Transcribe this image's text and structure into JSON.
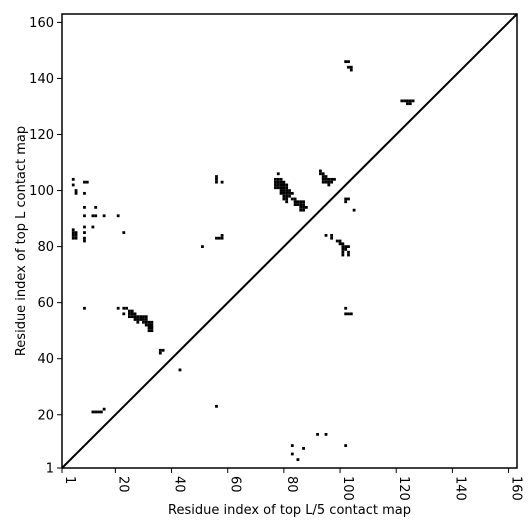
{
  "chart_data": {
    "type": "scatter",
    "title": "",
    "xlabel": "Residue index of top L/5 contact map",
    "ylabel": "Residue index of top L contact map",
    "xlim": [
      1,
      163
    ],
    "ylim": [
      1,
      163
    ],
    "x_ticks": [
      1,
      20,
      40,
      60,
      80,
      100,
      120,
      140,
      160
    ],
    "y_ticks": [
      1,
      20,
      40,
      60,
      80,
      100,
      120,
      140,
      160
    ],
    "x_tick_rotation": -90,
    "grid": false,
    "legend": "none",
    "diagonal": [
      [
        1,
        1
      ],
      [
        163,
        163
      ]
    ],
    "marker": "square",
    "marker_color": "#000000",
    "series": [
      {
        "points": [
          [
            5,
            104
          ],
          [
            5,
            102
          ],
          [
            6,
            100
          ],
          [
            6,
            99
          ],
          [
            9,
            103
          ],
          [
            10,
            103
          ],
          [
            9,
            99
          ],
          [
            9,
            94
          ],
          [
            9,
            91
          ],
          [
            12,
            91
          ],
          [
            13,
            91
          ],
          [
            13,
            94
          ],
          [
            16,
            91
          ],
          [
            21,
            91
          ],
          [
            5,
            86
          ],
          [
            5,
            85
          ],
          [
            6,
            85
          ],
          [
            5,
            84
          ],
          [
            6,
            84
          ],
          [
            5,
            83
          ],
          [
            6,
            83
          ],
          [
            9,
            87
          ],
          [
            9,
            85
          ],
          [
            9,
            83
          ],
          [
            9,
            82
          ],
          [
            12,
            87
          ],
          [
            23,
            85
          ],
          [
            9,
            58
          ],
          [
            21,
            58
          ],
          [
            23,
            58
          ],
          [
            24,
            58
          ],
          [
            23,
            56
          ],
          [
            25,
            57
          ],
          [
            26,
            57
          ],
          [
            25,
            56
          ],
          [
            26,
            56
          ],
          [
            27,
            56
          ],
          [
            25,
            55
          ],
          [
            26,
            55
          ],
          [
            27,
            55
          ],
          [
            28,
            55
          ],
          [
            29,
            55
          ],
          [
            30,
            55
          ],
          [
            31,
            55
          ],
          [
            27,
            54
          ],
          [
            28,
            54
          ],
          [
            29,
            54
          ],
          [
            30,
            54
          ],
          [
            31,
            54
          ],
          [
            28,
            53
          ],
          [
            30,
            53
          ],
          [
            31,
            53
          ],
          [
            32,
            53
          ],
          [
            33,
            53
          ],
          [
            31,
            52
          ],
          [
            32,
            52
          ],
          [
            33,
            52
          ],
          [
            32,
            51
          ],
          [
            33,
            51
          ],
          [
            32,
            50
          ],
          [
            33,
            50
          ],
          [
            36,
            43
          ],
          [
            37,
            43
          ],
          [
            36,
            42
          ],
          [
            43,
            36
          ],
          [
            12,
            21
          ],
          [
            13,
            21
          ],
          [
            14,
            21
          ],
          [
            15,
            21
          ],
          [
            16,
            22
          ],
          [
            56,
            105
          ],
          [
            56,
            104
          ],
          [
            56,
            103
          ],
          [
            58,
            103
          ],
          [
            51,
            80
          ],
          [
            56,
            83
          ],
          [
            57,
            83
          ],
          [
            58,
            83
          ],
          [
            58,
            84
          ],
          [
            56,
            23
          ],
          [
            78,
            106
          ],
          [
            77,
            104
          ],
          [
            78,
            104
          ],
          [
            79,
            104
          ],
          [
            77,
            103
          ],
          [
            78,
            103
          ],
          [
            79,
            103
          ],
          [
            80,
            103
          ],
          [
            77,
            102
          ],
          [
            78,
            102
          ],
          [
            79,
            102
          ],
          [
            80,
            102
          ],
          [
            81,
            102
          ],
          [
            77,
            101
          ],
          [
            78,
            101
          ],
          [
            79,
            101
          ],
          [
            80,
            101
          ],
          [
            81,
            101
          ],
          [
            79,
            100
          ],
          [
            80,
            100
          ],
          [
            81,
            100
          ],
          [
            82,
            100
          ],
          [
            79,
            99
          ],
          [
            80,
            99
          ],
          [
            81,
            99
          ],
          [
            82,
            99
          ],
          [
            83,
            99
          ],
          [
            80,
            98
          ],
          [
            81,
            98
          ],
          [
            82,
            98
          ],
          [
            80,
            97
          ],
          [
            81,
            97
          ],
          [
            81,
            96
          ],
          [
            83,
            97
          ],
          [
            84,
            97
          ],
          [
            84,
            96
          ],
          [
            85,
            96
          ],
          [
            86,
            96
          ],
          [
            87,
            96
          ],
          [
            84,
            95
          ],
          [
            85,
            95
          ],
          [
            86,
            95
          ],
          [
            87,
            95
          ],
          [
            86,
            94
          ],
          [
            87,
            94
          ],
          [
            88,
            94
          ],
          [
            86,
            93
          ],
          [
            87,
            93
          ],
          [
            93,
            107
          ],
          [
            93,
            106
          ],
          [
            94,
            106
          ],
          [
            94,
            105
          ],
          [
            95,
            105
          ],
          [
            94,
            104
          ],
          [
            95,
            104
          ],
          [
            96,
            104
          ],
          [
            97,
            104
          ],
          [
            98,
            104
          ],
          [
            94,
            103
          ],
          [
            95,
            103
          ],
          [
            96,
            103
          ],
          [
            97,
            103
          ],
          [
            96,
            102
          ],
          [
            102,
            97
          ],
          [
            103,
            97
          ],
          [
            102,
            96
          ],
          [
            105,
            93
          ],
          [
            95,
            84
          ],
          [
            97,
            84
          ],
          [
            97,
            83
          ],
          [
            99,
            82
          ],
          [
            100,
            82
          ],
          [
            100,
            81
          ],
          [
            101,
            81
          ],
          [
            101,
            80
          ],
          [
            102,
            80
          ],
          [
            103,
            80
          ],
          [
            101,
            79
          ],
          [
            102,
            79
          ],
          [
            101,
            78
          ],
          [
            103,
            78
          ],
          [
            101,
            77
          ],
          [
            103,
            77
          ],
          [
            102,
            58
          ],
          [
            102,
            56
          ],
          [
            103,
            56
          ],
          [
            104,
            56
          ],
          [
            102,
            146
          ],
          [
            103,
            146
          ],
          [
            103,
            144
          ],
          [
            104,
            144
          ],
          [
            104,
            143
          ],
          [
            122,
            132
          ],
          [
            123,
            132
          ],
          [
            124,
            132
          ],
          [
            125,
            132
          ],
          [
            126,
            132
          ],
          [
            124,
            131
          ],
          [
            125,
            131
          ],
          [
            83,
            9
          ],
          [
            83,
            6
          ],
          [
            85,
            4
          ],
          [
            87,
            8
          ],
          [
            92,
            13
          ],
          [
            95,
            13
          ],
          [
            102,
            9
          ]
        ]
      }
    ]
  }
}
